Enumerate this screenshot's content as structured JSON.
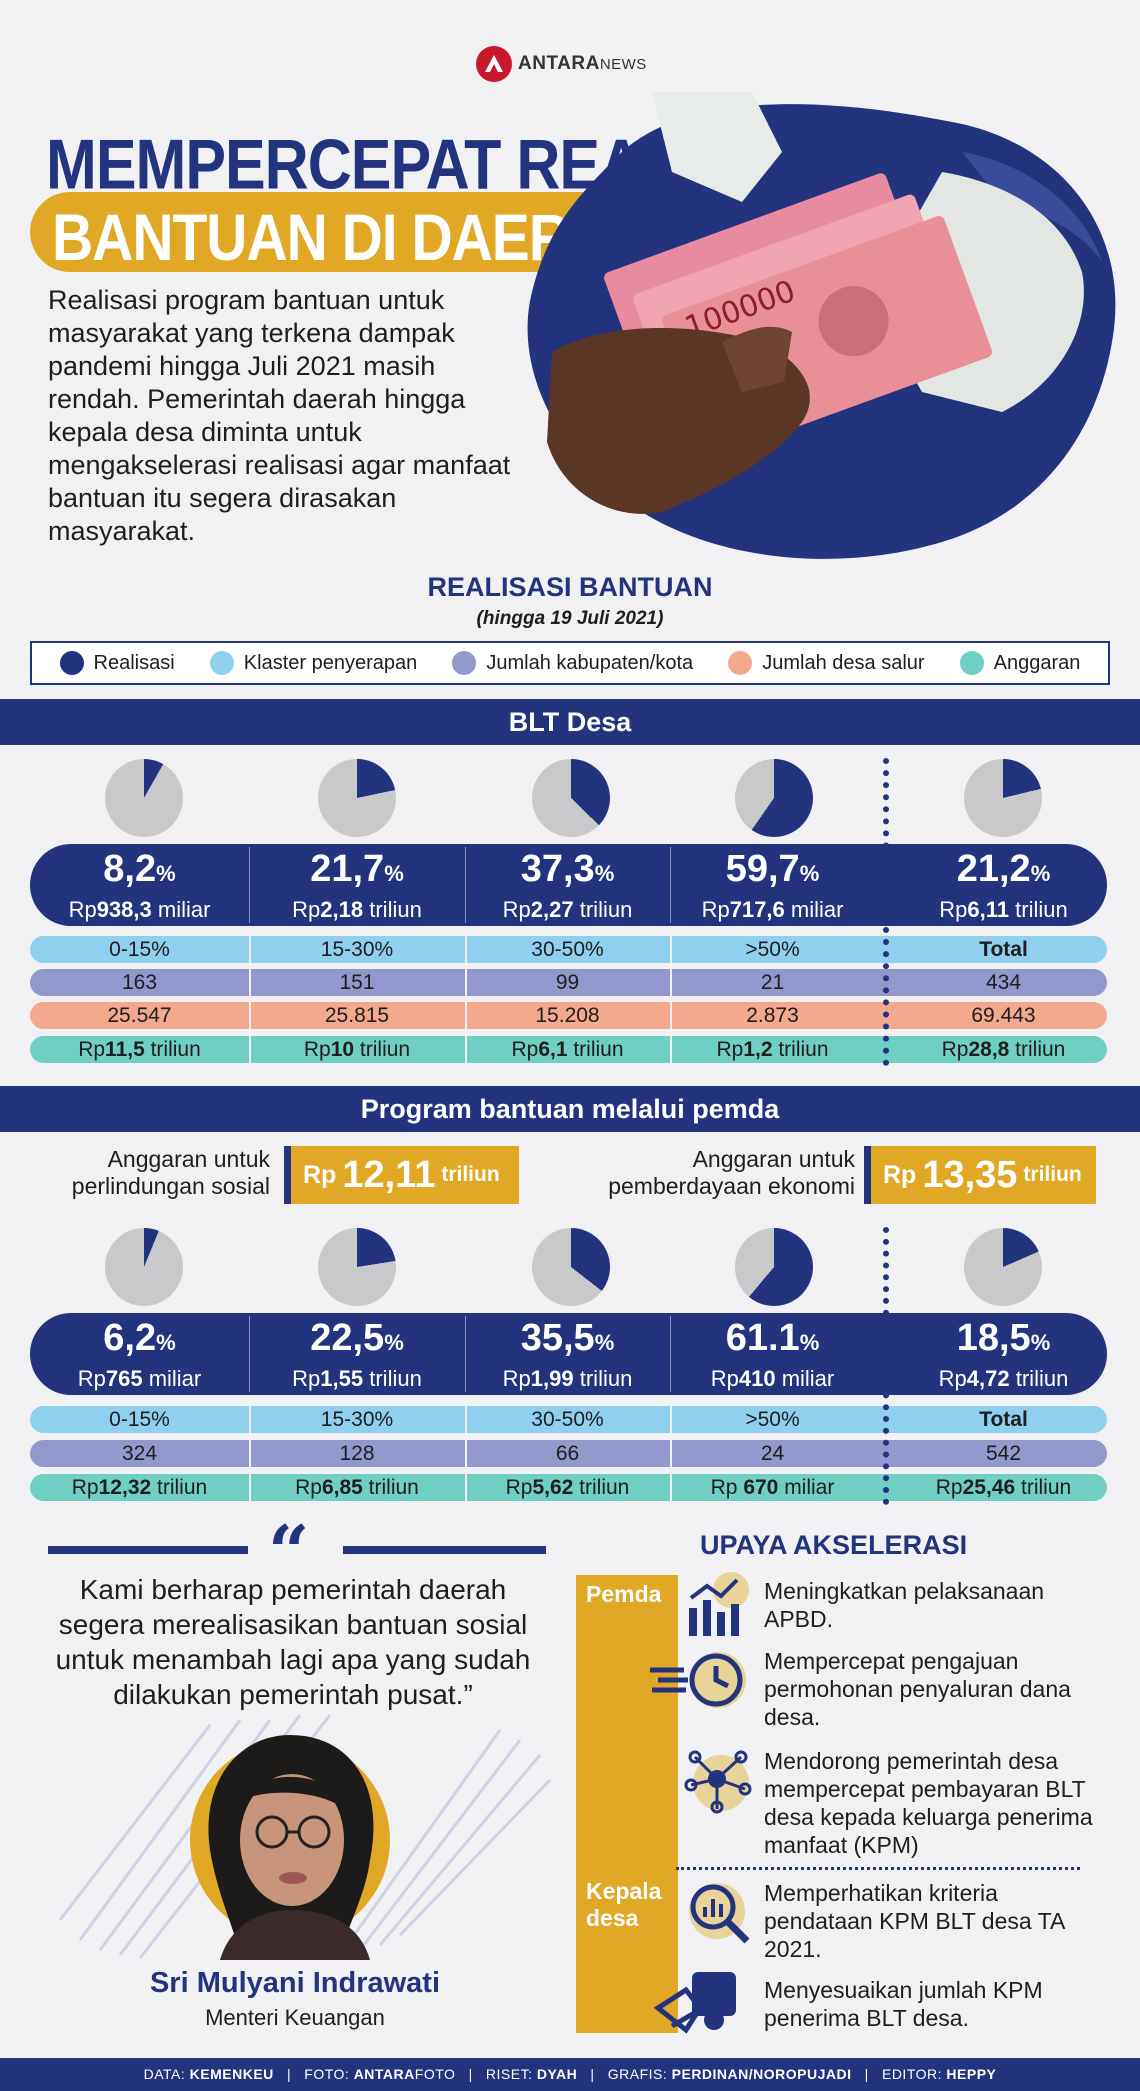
{
  "brand": {
    "name": "ANTARA",
    "suffix": "NEWS"
  },
  "title": {
    "line1": "MEMPERCEPAT REALISASI",
    "line2": "BANTUAN DI DAERAH"
  },
  "intro": "Realisasi program bantuan untuk masyarakat yang terkena dampak pandemi hingga Juli 2021 masih rendah. Pemerintah daerah hingga kepala desa diminta untuk mengakselerasi realisasi agar manfaat bantuan itu segera dirasakan masyarakat.",
  "section": {
    "title": "REALISASI BANTUAN",
    "subtitle": "(hingga 19 Juli 2021)"
  },
  "legend": [
    {
      "label": "Realisasi",
      "color": "#24337e"
    },
    {
      "label": "Klaster penyerapan",
      "color": "#8fd0ee"
    },
    {
      "label": "Jumlah kabupaten/kota",
      "color": "#9298cc"
    },
    {
      "label": "Jumlah desa salur",
      "color": "#f2a98d"
    },
    {
      "label": "Anggaran",
      "color": "#6fcfc3"
    }
  ],
  "blt": {
    "title": "BLT Desa",
    "pies": [
      8.2,
      21.7,
      37.3,
      59.7,
      21.2
    ],
    "cols": [
      {
        "pct": "8,2",
        "rp": "Rp",
        "amt_bold": "938,3",
        "amt_unit": " miliar",
        "klaster": "0-15%",
        "kab": "163",
        "desa": "25.547",
        "ang_rp": "Rp",
        "ang_bold": "11,5",
        "ang_unit": " triliun"
      },
      {
        "pct": "21,7",
        "rp": "Rp",
        "amt_bold": "2,18",
        "amt_unit": " triliun",
        "klaster": "15-30%",
        "kab": "151",
        "desa": "25.815",
        "ang_rp": "Rp",
        "ang_bold": "10",
        "ang_unit": " triliun"
      },
      {
        "pct": "37,3",
        "rp": "Rp",
        "amt_bold": "2,27",
        "amt_unit": " triliun",
        "klaster": "30-50%",
        "kab": "99",
        "desa": "15.208",
        "ang_rp": "Rp",
        "ang_bold": "6,1",
        "ang_unit": " triliun"
      },
      {
        "pct": "59,7",
        "rp": "Rp",
        "amt_bold": "717,6",
        "amt_unit": " miliar",
        "klaster": ">50%",
        "kab": "21",
        "desa": "2.873",
        "ang_rp": "Rp",
        "ang_bold": "1,2",
        "ang_unit": " triliun"
      },
      {
        "pct": "21,2",
        "rp": "Rp",
        "amt_bold": "6,11",
        "amt_unit": " triliun",
        "klaster": "Total",
        "kab": "434",
        "desa": "69.443",
        "ang_rp": "Rp",
        "ang_bold": "28,8",
        "ang_unit": " triliun"
      }
    ]
  },
  "pemda": {
    "title": "Program bantuan melalui pemda",
    "anggaran1": {
      "label1": "Anggaran untuk",
      "label2": "perlindungan sosial",
      "rp": "Rp",
      "value": "12,11",
      "unit": "triliun"
    },
    "anggaran2": {
      "label1": "Anggaran untuk",
      "label2": "pemberdayaan ekonomi",
      "rp": "Rp",
      "value": "13,35",
      "unit": "triliun"
    },
    "pies": [
      6.2,
      22.5,
      35.5,
      61.1,
      18.5
    ],
    "cols": [
      {
        "pct": "6,2",
        "rp": "Rp",
        "amt_bold": "765",
        "amt_unit": " miliar",
        "klaster": "0-15%",
        "kab": "324",
        "ang_rp": "Rp",
        "ang_bold": "12,32",
        "ang_unit": " triliun"
      },
      {
        "pct": "22,5",
        "rp": "Rp",
        "amt_bold": "1,55",
        "amt_unit": " triliun",
        "klaster": "15-30%",
        "kab": "128",
        "ang_rp": "Rp",
        "ang_bold": "6,85",
        "ang_unit": " triliun"
      },
      {
        "pct": "35,5",
        "rp": "Rp",
        "amt_bold": "1,99",
        "amt_unit": " triliun",
        "klaster": "30-50%",
        "kab": "66",
        "ang_rp": "Rp",
        "ang_bold": "5,62",
        "ang_unit": " triliun"
      },
      {
        "pct": "61.1",
        "rp": "Rp",
        "amt_bold": "410",
        "amt_unit": " miliar",
        "klaster": ">50%",
        "kab": "24",
        "ang_rp": "Rp ",
        "ang_bold": "670",
        "ang_unit": " miliar"
      },
      {
        "pct": "18,5",
        "rp": "Rp",
        "amt_bold": "4,72",
        "amt_unit": " triliun",
        "klaster": "Total",
        "kab": "542",
        "ang_rp": "Rp",
        "ang_bold": "25,46",
        "ang_unit": " triliun"
      }
    ]
  },
  "quote": {
    "text": "Kami berharap pemerintah daerah segera merealisasikan bantuan sosial untuk menambah lagi apa yang sudah dilakukan pemerintah pusat.”",
    "name": "Sri Mulyani Indrawati",
    "role": "Menteri Keuangan"
  },
  "upaya": {
    "title": "UPAYA AKSELERASI",
    "tag_pemda": "Pemda",
    "tag_kepala1": "Kepala",
    "tag_kepala2": "desa",
    "items": [
      "Meningkatkan pelaksanaan APBD.",
      "Mempercepat pengajuan permohonan penyaluran dana desa.",
      "Mendorong pemerintah desa mempercepat pembayaran BLT desa kepada keluarga penerima manfaat (KPM)",
      "Memperhatikan kriteria pendataan KPM BLT desa TA 2021.",
      "Menyesuaikan jumlah KPM penerima BLT desa."
    ]
  },
  "footer": {
    "data_label": "DATA: ",
    "data": "KEMENKEU",
    "foto_label": "FOTO: ",
    "foto_bold": "ANTARA",
    "foto_rest": "FOTO",
    "riset_label": "RISET: ",
    "riset": "DYAH",
    "grafis_label": "GRAFIS: ",
    "grafis": "PERDINAN/NOROPUJADI",
    "editor_label": "EDITOR: ",
    "editor": "HEPPY"
  },
  "colors": {
    "navy": "#24337e",
    "gold": "#e1a826",
    "pie_grey": "#c9c9cc"
  }
}
